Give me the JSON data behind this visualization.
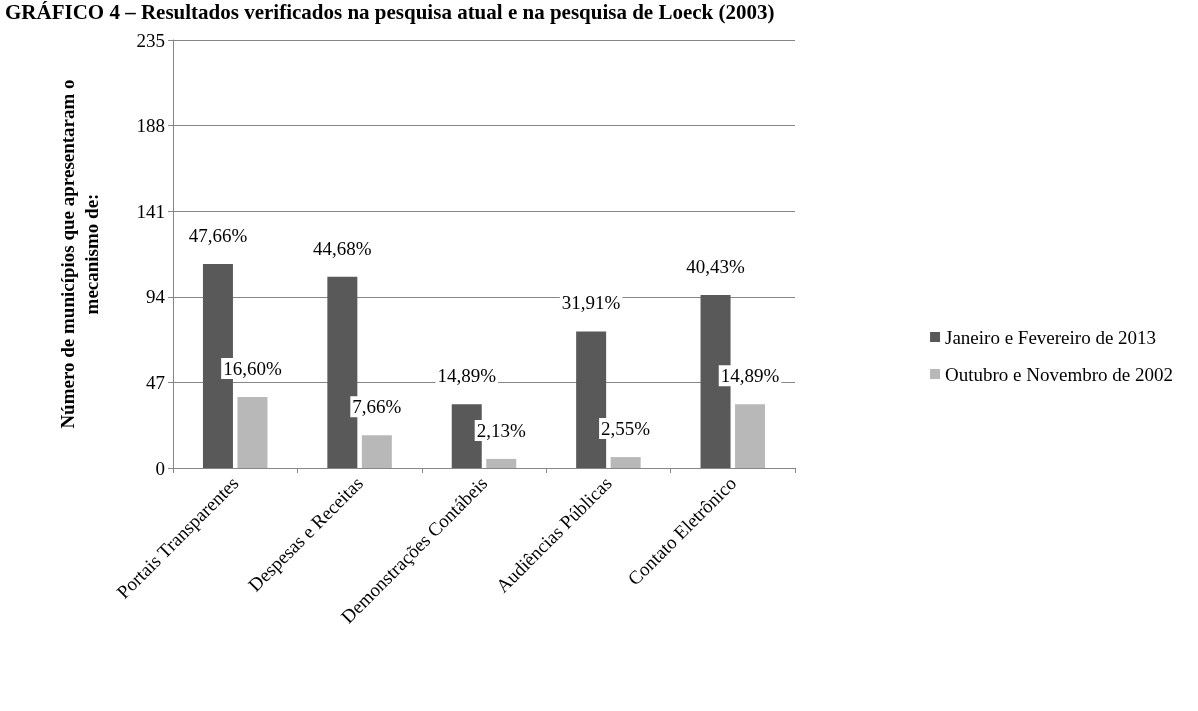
{
  "chart_data": {
    "type": "bar",
    "title": "GRÁFICO 4 – Resultados verificados na pesquisa atual e na pesquisa de Loeck (2003)",
    "ylabel": "Número de municípios que apresentaram o\nmecanismo de:",
    "categories": [
      "Portais Transparentes",
      "Despesas e Receitas",
      "Demonstrações Contábeis",
      "Audiências Públicas",
      "Contato Eletrônico"
    ],
    "series": [
      {
        "name": "Janeiro e Fevereiro de 2013",
        "color": "#595959",
        "values": [
          112,
          105,
          35,
          75,
          95
        ]
      },
      {
        "name": "Outubro e Novembro de 2002",
        "color": "#b8b8b8",
        "values": [
          39,
          18,
          5,
          6,
          35
        ]
      }
    ],
    "annotations": [
      {
        "text": "47,66%",
        "x": "Portais Transparentes",
        "y": 112
      },
      {
        "text": "44,68%",
        "x": "Despesas e Receitas",
        "y": 105
      },
      {
        "text": "14,89%",
        "x": "Demonstrações Contábeis",
        "y": 35
      },
      {
        "text": "31,91%",
        "x": "Audiências Públicas",
        "y": 75
      },
      {
        "text": "40,43%",
        "x": "Contato Eletrônico",
        "y": 95
      },
      {
        "text": "16,60%",
        "x": "Portais Transparentes",
        "y": 39
      },
      {
        "text": "7,66%",
        "x": "Despesas e Receitas",
        "y": 18
      },
      {
        "text": "2,13%",
        "x": "Demonstrações Contábeis",
        "y": 5
      },
      {
        "text": "2,55%",
        "x": "Audiências Públicas",
        "y": 6
      },
      {
        "text": "14,89%",
        "x": "Contato Eletrônico",
        "y": 35
      }
    ],
    "ylim": [
      0,
      235
    ],
    "yticks": [
      0,
      47,
      94,
      141,
      188,
      235
    ],
    "grid": "y",
    "legend": "right"
  }
}
